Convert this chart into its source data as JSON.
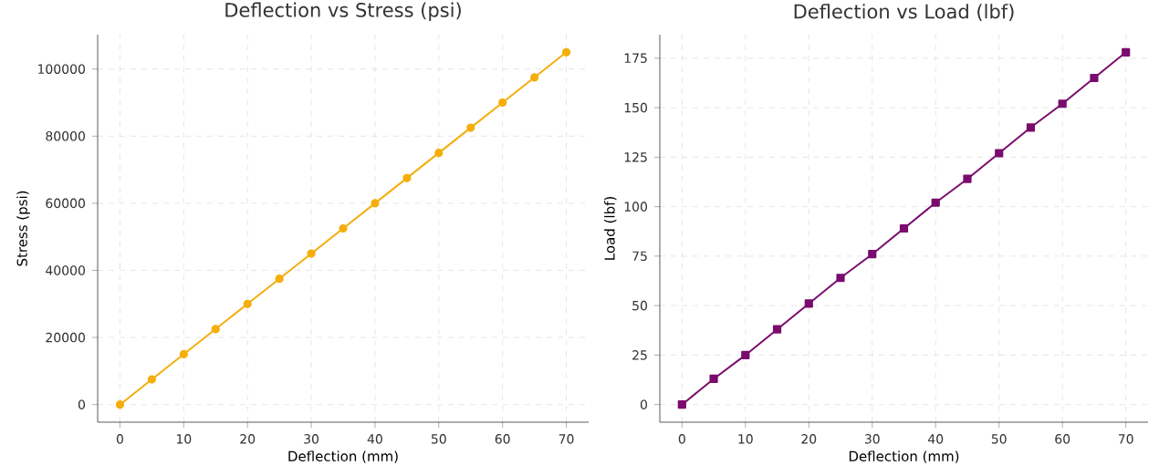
{
  "chart_data": [
    {
      "type": "line",
      "title": "Deflection vs Stress (psi)",
      "xlabel": "Deflection (mm)",
      "ylabel": "Stress (psi)",
      "x": [
        0,
        5,
        10,
        15,
        20,
        25,
        30,
        35,
        40,
        45,
        50,
        55,
        60,
        65,
        70
      ],
      "series": [
        {
          "color": "#f5ae0c",
          "values": [
            0,
            7500,
            15000,
            22500,
            30000,
            37500,
            45000,
            52500,
            60000,
            67500,
            75000,
            82500,
            90000,
            97500,
            105000
          ]
        }
      ],
      "xlim": [
        -3.5,
        73.5
      ],
      "ylim": [
        -5250,
        110250
      ],
      "xticks": [
        0,
        10,
        20,
        30,
        40,
        50,
        60,
        70
      ],
      "yticks": [
        0,
        20000,
        40000,
        60000,
        80000,
        100000
      ],
      "grid": true,
      "marker": "circle",
      "line_style": "solid"
    },
    {
      "type": "line",
      "title": "Deflection vs Load (lbf)",
      "xlabel": "Deflection (mm)",
      "ylabel": "Load (lbf)",
      "x": [
        0,
        5,
        10,
        15,
        20,
        25,
        30,
        35,
        40,
        45,
        50,
        55,
        60,
        65,
        70
      ],
      "series": [
        {
          "color": "#7a0c6e",
          "values": [
            0,
            13,
            25,
            38,
            51,
            64,
            76,
            89,
            102,
            114,
            127,
            140,
            152,
            165,
            178
          ]
        }
      ],
      "xlim": [
        -3.5,
        73.5
      ],
      "ylim": [
        -8.9,
        186.9
      ],
      "xticks": [
        0,
        10,
        20,
        30,
        40,
        50,
        60,
        70
      ],
      "yticks": [
        0,
        25,
        50,
        75,
        100,
        125,
        150,
        175
      ],
      "grid": true,
      "marker": "square",
      "line_style": "solid"
    }
  ]
}
